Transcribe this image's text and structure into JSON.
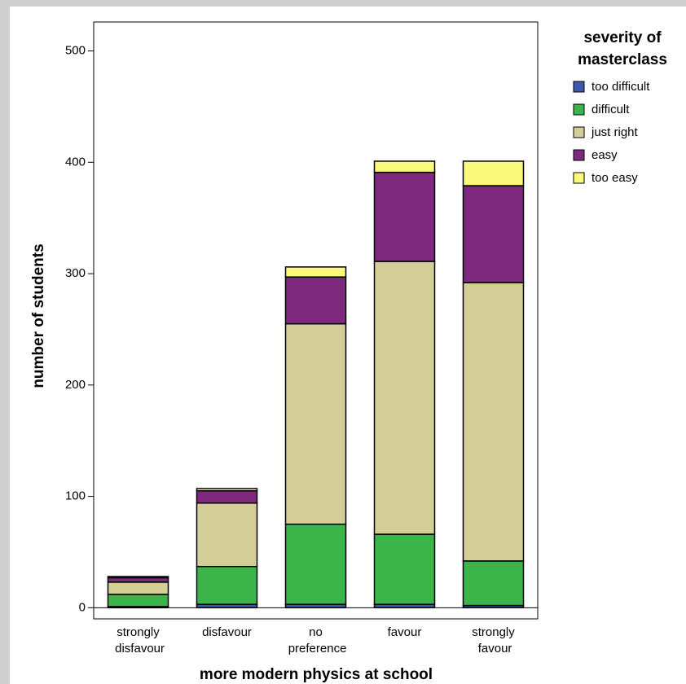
{
  "chart_data": {
    "type": "stacked_bar",
    "x_label": "more modern physics at school",
    "y_label": "number of students",
    "legend_title": [
      "severity of",
      "masterclass"
    ],
    "categories": [
      "strongly disfavour",
      "disfavour",
      "no preference",
      "favour",
      "strongly favour"
    ],
    "series": [
      {
        "name": "too difficult",
        "color": "#3e58ac",
        "values": [
          1,
          3,
          3,
          3,
          2
        ]
      },
      {
        "name": "difficult",
        "color": "#3bb44a",
        "values": [
          11,
          34,
          72,
          63,
          40
        ]
      },
      {
        "name": "just right",
        "color": "#d3ce97",
        "values": [
          11,
          57,
          180,
          245,
          250
        ]
      },
      {
        "name": "easy",
        "color": "#7d2a7e",
        "values": [
          4,
          11,
          42,
          80,
          87
        ]
      },
      {
        "name": "too easy",
        "color": "#fbf97b",
        "values": [
          1,
          2,
          9,
          10,
          22
        ]
      }
    ],
    "ylim": [
      -10,
      526
    ],
    "yticks": [
      0,
      100,
      200,
      300,
      400,
      500
    ]
  }
}
